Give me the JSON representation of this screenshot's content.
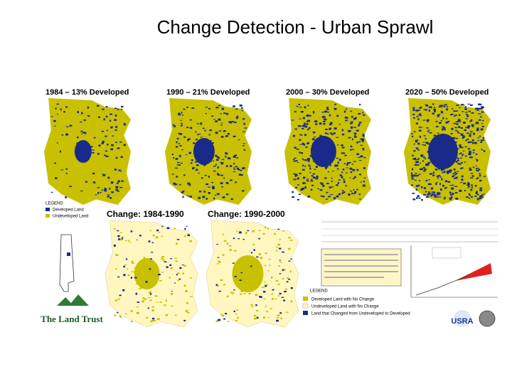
{
  "title": "Change Detection - Urban Sprawl",
  "maps": [
    {
      "label": "1984 – 13% Developed"
    },
    {
      "label": "1990 – 21% Developed"
    },
    {
      "label": "2000 – 30% Developed"
    },
    {
      "label": "2020 – 50% Developed"
    }
  ],
  "legend": {
    "title": "LEGEND",
    "items": [
      "Developed Land",
      "Undeveloped Land"
    ]
  },
  "change_maps": [
    {
      "label": "Change: 1984-1990"
    },
    {
      "label": "Change: 1990-2000"
    }
  ],
  "change_legend": {
    "title": "LEGEND",
    "items": [
      "Developed Land with No Change",
      "Undeveloped Land with No Change",
      "Land that Changed from Undeveloped to Developed"
    ]
  },
  "logos": {
    "land_trust": "The Land Trust",
    "usra": "USRA"
  }
}
